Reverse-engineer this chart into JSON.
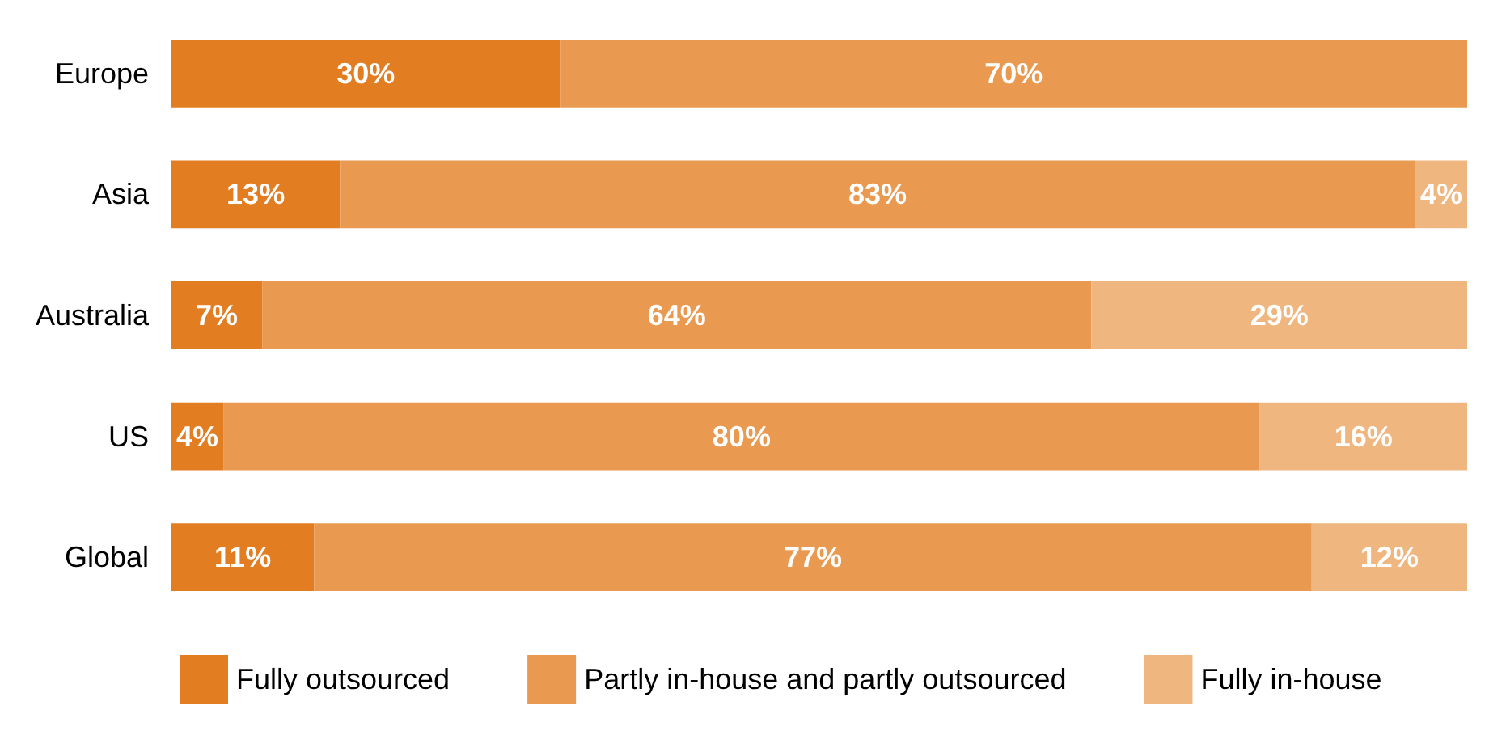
{
  "chart_data": {
    "type": "bar",
    "orientation": "horizontal",
    "stacked": true,
    "categories": [
      "Europe",
      "Asia",
      "Australia",
      "US",
      "Global"
    ],
    "xlim": [
      0,
      100
    ],
    "tick_labels": "y",
    "legend": "bottom",
    "series": [
      {
        "name": "Fully outsourced",
        "color": "#e27d22",
        "values": [
          30,
          13,
          7,
          4,
          11
        ],
        "value_labels": [
          "30%",
          "13%",
          "7%",
          "4%",
          "11%"
        ]
      },
      {
        "name": "Partly in-house and partly outsourced",
        "color": "#ea9a50",
        "values": [
          70,
          83,
          64,
          80,
          77
        ],
        "value_labels": [
          "70%",
          "83%",
          "64%",
          "80%",
          "77%"
        ]
      },
      {
        "name": "Fully in-house",
        "color": "#efb680",
        "values": [
          null,
          4,
          29,
          16,
          12
        ],
        "value_labels": [
          null,
          "4%",
          "29%",
          "16%",
          "12%"
        ]
      }
    ]
  }
}
